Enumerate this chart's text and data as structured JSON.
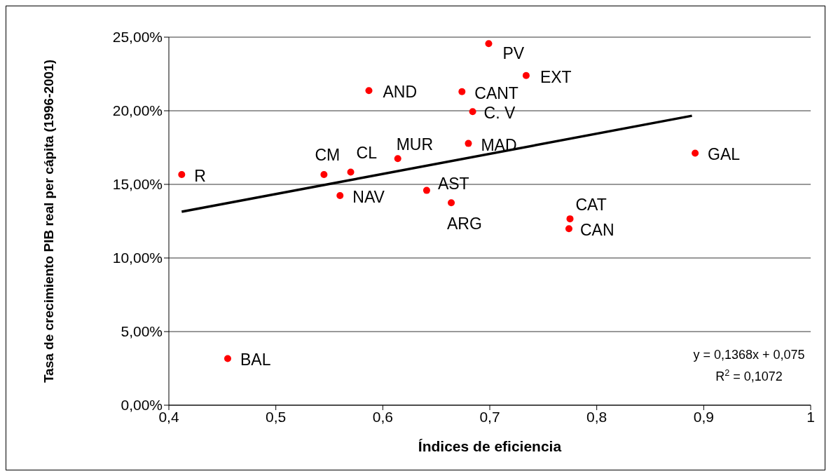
{
  "chart_data": {
    "type": "scatter",
    "xlabel": "Índices de eficiencia",
    "ylabel": "Tasa de crecimiento PIB real per cápita (1996-2001)",
    "xlim": [
      0.4,
      1
    ],
    "xticks": [
      {
        "value": 0.4,
        "label": "0,4"
      },
      {
        "value": 0.5,
        "label": "0,5"
      },
      {
        "value": 0.6,
        "label": "0,6"
      },
      {
        "value": 0.7,
        "label": "0,7"
      },
      {
        "value": 0.8,
        "label": "0,8"
      },
      {
        "value": 0.9,
        "label": "0,9"
      },
      {
        "value": 1,
        "label": "1"
      }
    ],
    "ylim": [
      0,
      25
    ],
    "yticks": [
      {
        "value": 0,
        "label": "0,00%"
      },
      {
        "value": 5,
        "label": "5,00%"
      },
      {
        "value": 10,
        "label": "10,00%"
      },
      {
        "value": 15,
        "label": "15,00%"
      },
      {
        "value": 20,
        "label": "20,00%"
      },
      {
        "value": 25,
        "label": "25,00%"
      }
    ],
    "grid": "y",
    "legend": false,
    "series": [
      {
        "color": "#ff0000",
        "marker": "circle",
        "x": [
          0.699,
          0.734,
          0.587,
          0.674,
          0.684,
          0.614,
          0.68,
          0.892,
          0.412,
          0.545,
          0.57,
          0.56,
          0.641,
          0.664,
          0.775,
          0.774,
          0.455
        ],
        "values": [
          24.56,
          22.39,
          21.37,
          21.3,
          19.94,
          16.75,
          17.78,
          17.12,
          15.67,
          15.67,
          15.83,
          14.24,
          14.59,
          13.75,
          12.66,
          11.99,
          3.17
        ]
      },
      {
        "type": "line",
        "color": "#000000",
        "marker": "none",
        "line_style": "solid",
        "x": [
          0.412,
          0.889
        ],
        "values": [
          13.14,
          19.66
        ]
      }
    ],
    "annotations": [
      {
        "text": "PV",
        "x": 0.699,
        "y": 24.56
      },
      {
        "text": "EXT",
        "x": 0.734,
        "y": 22.39
      },
      {
        "text": "AND",
        "x": 0.587,
        "y": 21.37
      },
      {
        "text": "CANT",
        "x": 0.674,
        "y": 21.3
      },
      {
        "text": "C. V",
        "x": 0.684,
        "y": 19.94
      },
      {
        "text": "MUR",
        "x": 0.614,
        "y": 16.75
      },
      {
        "text": "MAD",
        "x": 0.68,
        "y": 17.78
      },
      {
        "text": "GAL",
        "x": 0.892,
        "y": 17.12
      },
      {
        "text": "R",
        "x": 0.412,
        "y": 15.67
      },
      {
        "text": "CM",
        "x": 0.545,
        "y": 15.67
      },
      {
        "text": "CL",
        "x": 0.57,
        "y": 15.83
      },
      {
        "text": "NAV",
        "x": 0.56,
        "y": 14.24
      },
      {
        "text": "AST",
        "x": 0.641,
        "y": 14.59
      },
      {
        "text": "ARG",
        "x": 0.664,
        "y": 13.75
      },
      {
        "text": "CAT",
        "x": 0.775,
        "y": 12.66
      },
      {
        "text": "CAN",
        "x": 0.774,
        "y": 11.99
      },
      {
        "text": "BAL",
        "x": 0.455,
        "y": 3.17
      },
      "y = 0,1368x + 0,075",
      "R$^{2}$ = 0,1072"
    ]
  }
}
